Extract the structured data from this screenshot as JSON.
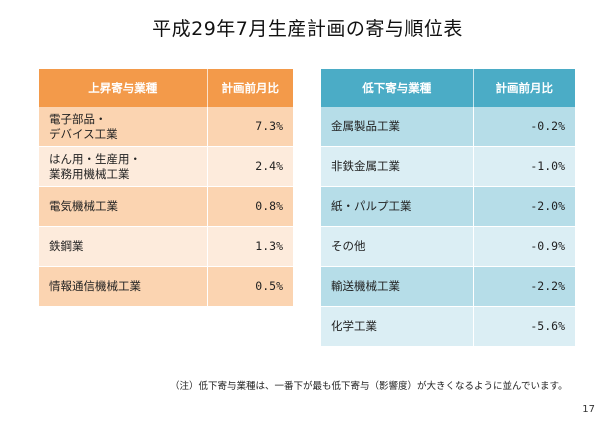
{
  "title": "平成29年7月生産計画の寄与順位表",
  "left_table": {
    "header": [
      "上昇寄与業種",
      "計画前月比"
    ],
    "rows": [
      {
        "label_lines": [
          "電子部品・",
          "デバイス工業"
        ],
        "value": "7.3%"
      },
      {
        "label_lines": [
          "はん用・生産用・",
          "業務用機械工業"
        ],
        "value": "2.4%"
      },
      {
        "label_lines": [
          "電気機械工業"
        ],
        "value": "0.8%"
      },
      {
        "label_lines": [
          "鉄鋼業"
        ],
        "value": "1.3%"
      },
      {
        "label_lines": [
          "情報通信機械工業"
        ],
        "value": "0.5%"
      }
    ]
  },
  "right_table": {
    "header": [
      "低下寄与業種",
      "計画前月比"
    ],
    "rows": [
      {
        "label_lines": [
          "金属製品工業"
        ],
        "value": "-0.2%"
      },
      {
        "label_lines": [
          "非鉄金属工業"
        ],
        "value": "-1.0%"
      },
      {
        "label_lines": [
          "紙・パルプ工業"
        ],
        "value": "-2.0%"
      },
      {
        "label_lines": [
          "その他"
        ],
        "value": "-0.9%"
      },
      {
        "label_lines": [
          "輸送機械工業"
        ],
        "value": "-2.2%"
      },
      {
        "label_lines": [
          "化学工業"
        ],
        "value": "-5.6%"
      }
    ]
  },
  "note": "（注）低下寄与業種は、一番下が最も低下寄与（影響度）が大きくなるように並んでいます。",
  "page_number": "17",
  "colors": {
    "left_header": "#f39a4a",
    "left_row_dark": "#fbd4b1",
    "left_row_light": "#fdebdc",
    "right_header": "#4bacc6",
    "right_row_dark": "#b6dde8",
    "right_row_light": "#dbeef4"
  }
}
